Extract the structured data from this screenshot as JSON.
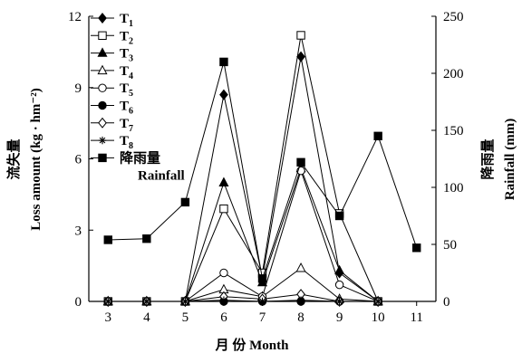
{
  "chart_data": {
    "type": "line",
    "x": [
      3,
      4,
      5,
      6,
      7,
      8,
      9,
      10,
      11
    ],
    "x_ticks": [
      "3",
      "4",
      "5",
      "6",
      "7",
      "8",
      "9",
      "10",
      "11"
    ],
    "xlabel": "月 份 Month",
    "ylabel_left": [
      "流失量",
      "Loss amount (kg · hm⁻²)"
    ],
    "ylabel_right": [
      "降雨量",
      "Rainfall (mm)"
    ],
    "ylim_left": [
      0,
      12
    ],
    "ylim_right": [
      0,
      250
    ],
    "yticks_left": [
      0,
      3,
      6,
      9,
      12
    ],
    "yticks_right": [
      0,
      50,
      100,
      150,
      200,
      250
    ],
    "legend_position": "top-left",
    "series": [
      {
        "name": "T1",
        "label_main": "T",
        "label_sub": "1",
        "axis": "left",
        "marker": "diamond-filled",
        "x": [
          3,
          4,
          5,
          6,
          7,
          8,
          9,
          10
        ],
        "values": [
          0,
          0,
          0,
          8.7,
          1.0,
          10.3,
          1.2,
          0
        ]
      },
      {
        "name": "T2",
        "label_main": "T",
        "label_sub": "2",
        "axis": "left",
        "marker": "square-open",
        "x": [
          3,
          4,
          5,
          6,
          7,
          8,
          9,
          10
        ],
        "values": [
          0,
          0,
          0,
          3.9,
          1.2,
          11.2,
          3.7,
          0
        ]
      },
      {
        "name": "T3",
        "label_main": "T",
        "label_sub": "3",
        "axis": "left",
        "marker": "triangle-filled",
        "x": [
          3,
          4,
          5,
          6,
          7,
          8,
          9,
          10
        ],
        "values": [
          0,
          0,
          0,
          5.0,
          0.8,
          5.6,
          1.3,
          0
        ]
      },
      {
        "name": "T4",
        "label_main": "T",
        "label_sub": "4",
        "axis": "left",
        "marker": "triangle-open",
        "x": [
          3,
          4,
          5,
          6,
          7,
          8,
          9,
          10
        ],
        "values": [
          0,
          0,
          0,
          0.5,
          0.2,
          1.4,
          0.1,
          0
        ]
      },
      {
        "name": "T5",
        "label_main": "T",
        "label_sub": "5",
        "axis": "left",
        "marker": "circle-open",
        "x": [
          3,
          4,
          5,
          6,
          7,
          8,
          9,
          10
        ],
        "values": [
          0,
          0,
          0,
          1.2,
          0.2,
          5.5,
          0.7,
          0
        ]
      },
      {
        "name": "T6",
        "label_main": "T",
        "label_sub": "6",
        "axis": "left",
        "marker": "circle-filled",
        "x": [
          3,
          4,
          5,
          6,
          7,
          8,
          9,
          10
        ],
        "values": [
          0,
          0,
          0,
          0,
          0,
          0,
          0,
          0
        ]
      },
      {
        "name": "T7",
        "label_main": "T",
        "label_sub": "7",
        "axis": "left",
        "marker": "diamond-open",
        "x": [
          3,
          4,
          5,
          6,
          7,
          8,
          9,
          10
        ],
        "values": [
          0,
          0,
          0,
          0.2,
          0.1,
          0.3,
          0,
          0
        ]
      },
      {
        "name": "T8",
        "label_main": "T",
        "label_sub": "8",
        "axis": "left",
        "marker": "asterisk",
        "x": [
          3,
          4,
          5,
          6,
          7,
          8,
          9,
          10
        ],
        "values": [
          0,
          0,
          0,
          0.05,
          0,
          0.05,
          0,
          0
        ]
      },
      {
        "name": "降雨量 Rainfall",
        "label_main": "降雨量",
        "label_line2": "Rainfall",
        "axis": "right",
        "marker": "square-filled",
        "x": [
          3,
          4,
          5,
          6,
          7,
          8,
          9,
          10,
          11
        ],
        "values": [
          54,
          55,
          87,
          210,
          20,
          122,
          75,
          145,
          47
        ]
      }
    ]
  }
}
